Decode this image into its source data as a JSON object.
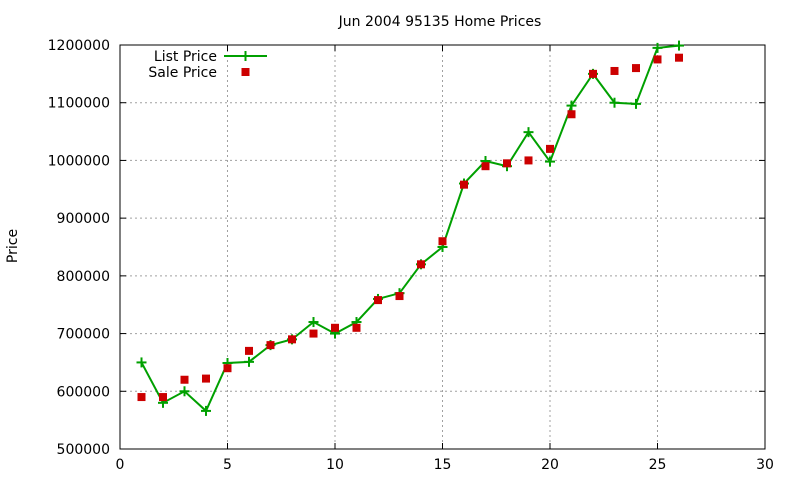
{
  "chart_data": {
    "type": "line",
    "title": "Jun 2004 95135 Home Prices",
    "xlabel": "",
    "ylabel": "Price",
    "xlim": [
      0,
      30
    ],
    "ylim": [
      500000,
      1200000
    ],
    "xticks": [
      0,
      5,
      10,
      15,
      20,
      25,
      30
    ],
    "yticks": [
      500000,
      600000,
      700000,
      800000,
      900000,
      1000000,
      1100000,
      1200000
    ],
    "grid": true,
    "legend_position": "top-left",
    "series": [
      {
        "name": "List Price",
        "style": "line-with-plus-markers",
        "color": "#00a000",
        "x": [
          1,
          2,
          3,
          4,
          5,
          6,
          7,
          8,
          9,
          10,
          11,
          12,
          13,
          14,
          15,
          16,
          17,
          18,
          19,
          20,
          21,
          22,
          23,
          24,
          25,
          26
        ],
        "values": [
          650000,
          580000,
          600000,
          566000,
          649000,
          651000,
          680000,
          690000,
          720000,
          700000,
          720000,
          760000,
          770000,
          820000,
          850000,
          960000,
          999000,
          990000,
          1049000,
          998000,
          1095000,
          1150000,
          1100000,
          1098000,
          1195000,
          1199000
        ]
      },
      {
        "name": "Sale Price",
        "style": "square-markers",
        "color": "#cc0000",
        "x": [
          1,
          2,
          3,
          4,
          5,
          6,
          7,
          8,
          9,
          10,
          11,
          12,
          13,
          14,
          15,
          16,
          17,
          18,
          19,
          20,
          21,
          22,
          23,
          24,
          25,
          26
        ],
        "values": [
          590000,
          590000,
          620000,
          622000,
          640000,
          670000,
          680000,
          690000,
          700000,
          710000,
          710000,
          758000,
          765000,
          820000,
          860000,
          958000,
          990000,
          995000,
          1000000,
          1020000,
          1080000,
          1150000,
          1155000,
          1160000,
          1175000,
          1178000
        ]
      }
    ]
  }
}
